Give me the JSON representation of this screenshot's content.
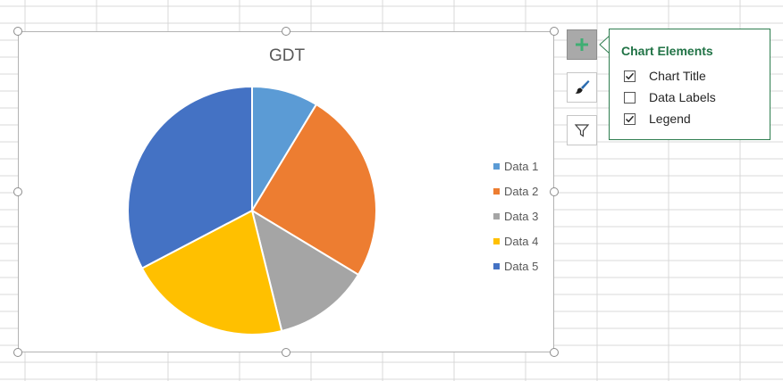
{
  "chart_elements_panel": {
    "title": "Chart Elements",
    "options": [
      {
        "label": "Chart Title",
        "checked": true
      },
      {
        "label": "Data Labels",
        "checked": false
      },
      {
        "label": "Legend",
        "checked": true
      }
    ]
  },
  "side_buttons": [
    {
      "icon": "plus-icon",
      "active": true
    },
    {
      "icon": "paintbrush-icon",
      "active": false
    },
    {
      "icon": "filter-icon",
      "active": false
    }
  ],
  "colors": {
    "accent_green": "#217346",
    "series": [
      "#5b9bd5",
      "#ed7d31",
      "#a5a5a5",
      "#ffc000",
      "#4472c4"
    ]
  },
  "chart_data": {
    "type": "pie",
    "title": "GDT",
    "categories": [
      "Data 1",
      "Data 2",
      "Data 3",
      "Data 4",
      "Data 5"
    ],
    "values": [
      9,
      26,
      13,
      22,
      34
    ],
    "legend_position": "right"
  }
}
